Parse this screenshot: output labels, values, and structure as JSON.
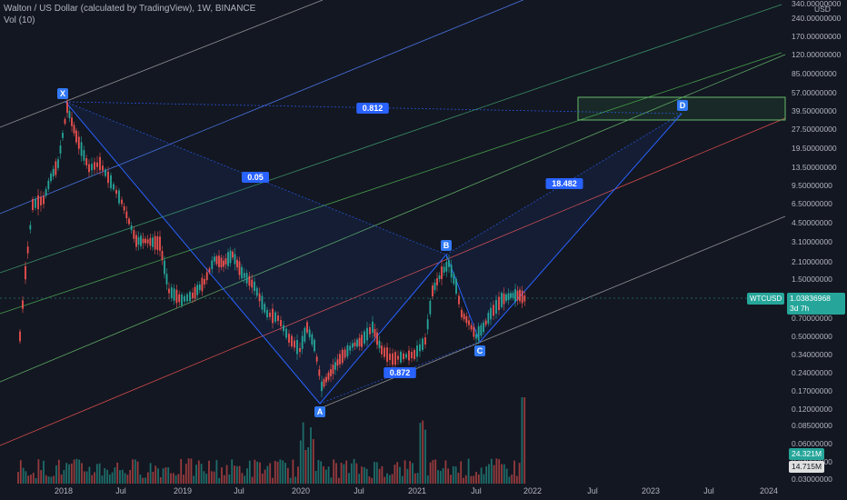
{
  "header": {
    "title": "Walton / US Dollar (calculated by TradingView), 1W, BINANCE",
    "indicator": "Vol (10)"
  },
  "currency": "USD",
  "price_axis": [
    "340.00000000",
    "240.00000000",
    "170.00000000",
    "120.00000000",
    "85.00000000",
    "57.00000000",
    "39.50000000",
    "27.50000000",
    "19.50000000",
    "13.50000000",
    "9.50000000",
    "6.50000000",
    "4.50000000",
    "3.10000000",
    "2.10000000",
    "1.50000000",
    "0.70000000",
    "0.50000000",
    "0.34000000",
    "0.24000000",
    "0.17000000",
    "0.12000000",
    "0.08500000",
    "0.06000000",
    "0.04000000",
    "0.03000000"
  ],
  "time_axis": [
    "2018",
    "Jul",
    "2019",
    "Jul",
    "2020",
    "Jul",
    "2021",
    "Jul",
    "2022",
    "Jul",
    "2023",
    "Jul",
    "2024"
  ],
  "symbol_tag": {
    "symbol": "WTCUSD",
    "price": "1.03836968",
    "countdown": "3d 7h"
  },
  "volume_tags": [
    "24.321M",
    "14.715M"
  ],
  "pattern": {
    "points": [
      "X",
      "A",
      "B",
      "C",
      "D"
    ],
    "ratios": [
      "0.812",
      "0.05",
      "18.482",
      "0.872"
    ]
  },
  "colors": {
    "bg": "#131722",
    "up": "#26a69a",
    "down": "#ef5350",
    "pattern": "#2962ff",
    "label": "#3179f5"
  }
}
